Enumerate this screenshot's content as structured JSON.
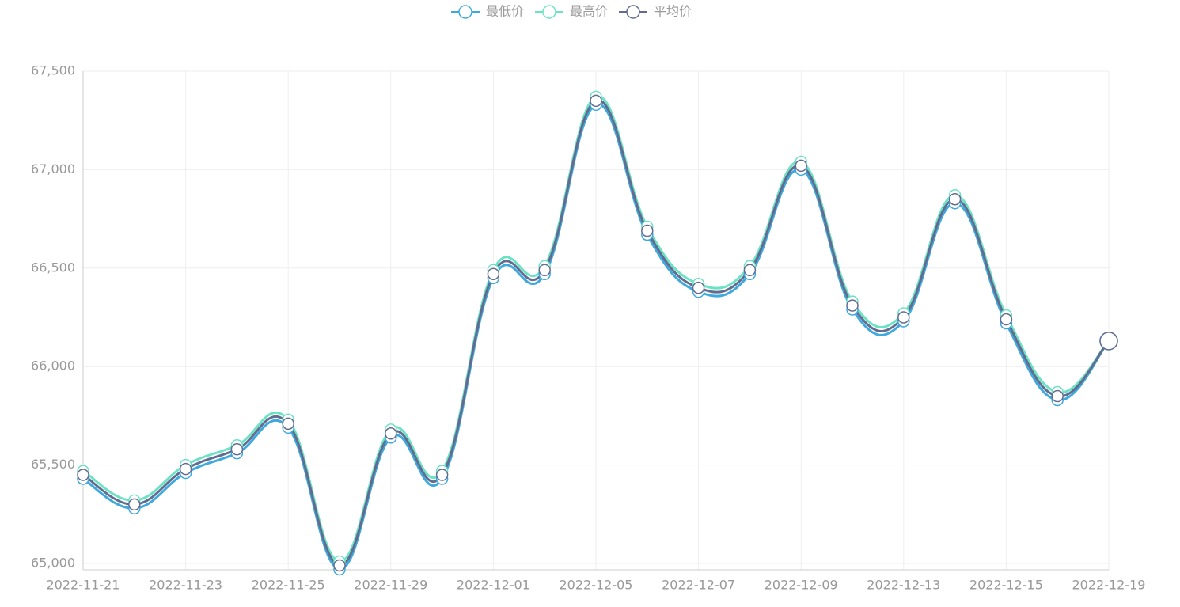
{
  "chart_data": {
    "type": "line",
    "categories": [
      "2022-11-21",
      null,
      "2022-11-23",
      null,
      "2022-11-25",
      null,
      "2022-11-29",
      null,
      "2022-12-01",
      null,
      "2022-12-05",
      null,
      "2022-12-07",
      null,
      "2022-12-09",
      null,
      "2022-12-13",
      null,
      "2022-12-15",
      null,
      "2022-12-19"
    ],
    "series": [
      {
        "name": "最低价",
        "color": "#3fa9dd",
        "values": [
          65430,
          65280,
          65460,
          65560,
          65690,
          64970,
          65640,
          65430,
          66450,
          66470,
          67330,
          66670,
          66380,
          66470,
          67000,
          66290,
          66230,
          66830,
          66220,
          65830,
          66130
        ]
      },
      {
        "name": "最高价",
        "color": "#6be3c3",
        "values": [
          65470,
          65320,
          65500,
          65600,
          65730,
          65010,
          65680,
          65470,
          66490,
          66510,
          67370,
          66710,
          66420,
          66510,
          67040,
          66330,
          66270,
          66870,
          66260,
          65870,
          66130
        ]
      },
      {
        "name": "平均价",
        "color": "#626c91",
        "values": [
          65450,
          65300,
          65480,
          65580,
          65710,
          64990,
          65660,
          65450,
          66470,
          66490,
          67350,
          66690,
          66400,
          66490,
          67020,
          66310,
          66250,
          66850,
          66240,
          65850,
          66130
        ]
      }
    ],
    "ylim": [
      65000,
      67500
    ],
    "yticks": [
      {
        "value": 65000,
        "label": "65,000"
      },
      {
        "value": 65500,
        "label": "65,500"
      },
      {
        "value": 66000,
        "label": "66,000"
      },
      {
        "value": 66500,
        "label": "66,500"
      },
      {
        "value": 67000,
        "label": "67,000"
      },
      {
        "value": 67500,
        "label": "67,500"
      }
    ],
    "grid": true,
    "legend": "top"
  }
}
